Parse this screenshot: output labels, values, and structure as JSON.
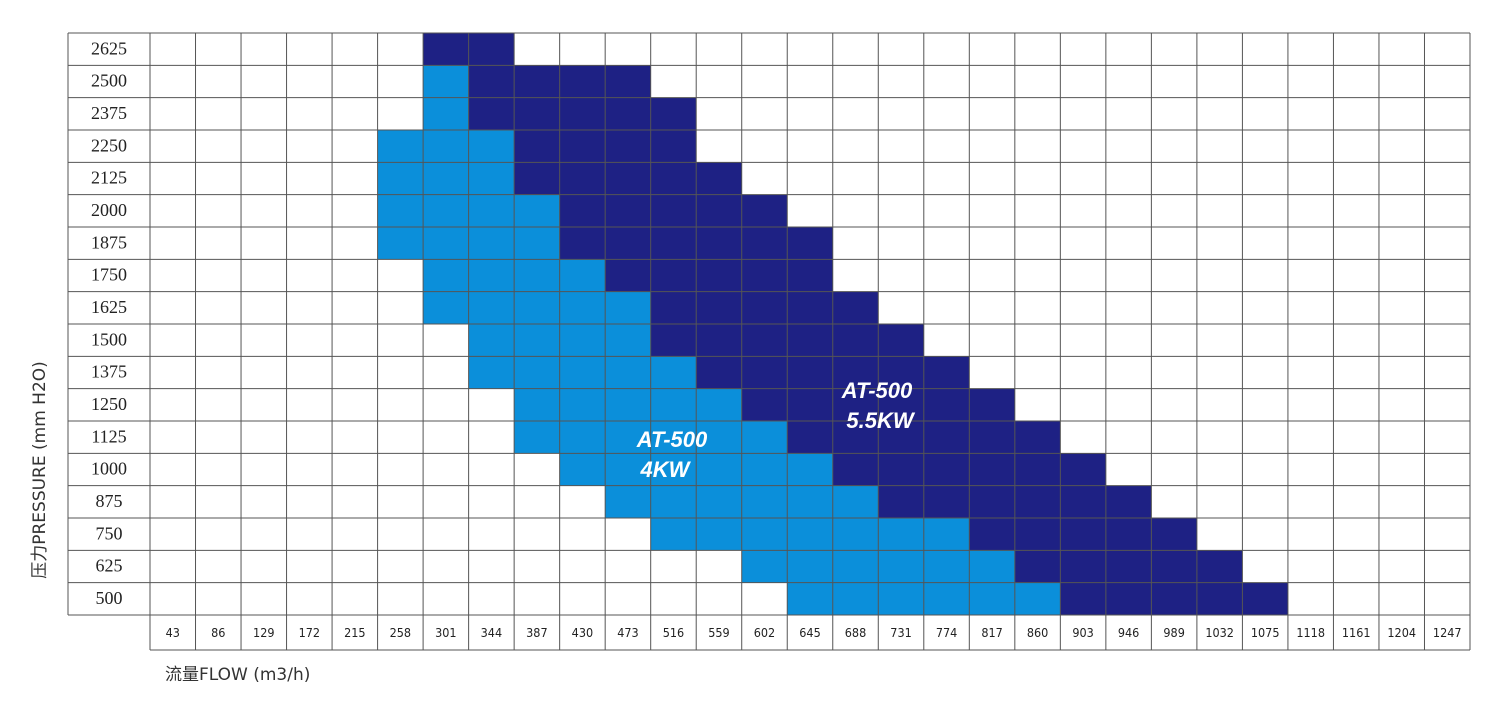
{
  "chart_data": {
    "type": "range-grid",
    "y_label": "压力PRESSURE (mm H2O)",
    "x_label": "流量FLOW (m3/h)",
    "pressure": [
      2625,
      2500,
      2375,
      2250,
      2125,
      2000,
      1875,
      1750,
      1625,
      1500,
      1375,
      1250,
      1125,
      1000,
      875,
      750,
      625,
      500
    ],
    "flow": [
      43,
      86,
      129,
      172,
      215,
      258,
      301,
      344,
      387,
      430,
      473,
      516,
      559,
      602,
      645,
      688,
      731,
      774,
      817,
      860,
      903,
      946,
      989,
      1032,
      1075,
      1118,
      1161,
      1204,
      1247
    ],
    "series": [
      {
        "model": "AT-500",
        "power": "4KW",
        "color": "#0b8fda",
        "values": [
          null,
          [
            301,
            301
          ],
          [
            301,
            301
          ],
          [
            258,
            344
          ],
          [
            258,
            344
          ],
          [
            258,
            387
          ],
          [
            258,
            387
          ],
          [
            301,
            430
          ],
          [
            301,
            473
          ],
          [
            344,
            473
          ],
          [
            344,
            516
          ],
          [
            387,
            559
          ],
          [
            387,
            602
          ],
          [
            430,
            645
          ],
          [
            473,
            688
          ],
          [
            516,
            774
          ],
          [
            602,
            817
          ],
          [
            645,
            860
          ]
        ]
      },
      {
        "model": "AT-500",
        "power": "5.5KW",
        "color": "#1e2184",
        "values": [
          [
            301,
            344
          ],
          [
            344,
            473
          ],
          [
            344,
            516
          ],
          [
            387,
            516
          ],
          [
            387,
            559
          ],
          [
            430,
            602
          ],
          [
            430,
            645
          ],
          [
            473,
            645
          ],
          [
            516,
            688
          ],
          [
            516,
            731
          ],
          [
            559,
            774
          ],
          [
            602,
            817
          ],
          [
            645,
            860
          ],
          [
            688,
            903
          ],
          [
            731,
            946
          ],
          [
            817,
            989
          ],
          [
            860,
            1032
          ],
          [
            903,
            1075
          ]
        ]
      }
    ]
  }
}
